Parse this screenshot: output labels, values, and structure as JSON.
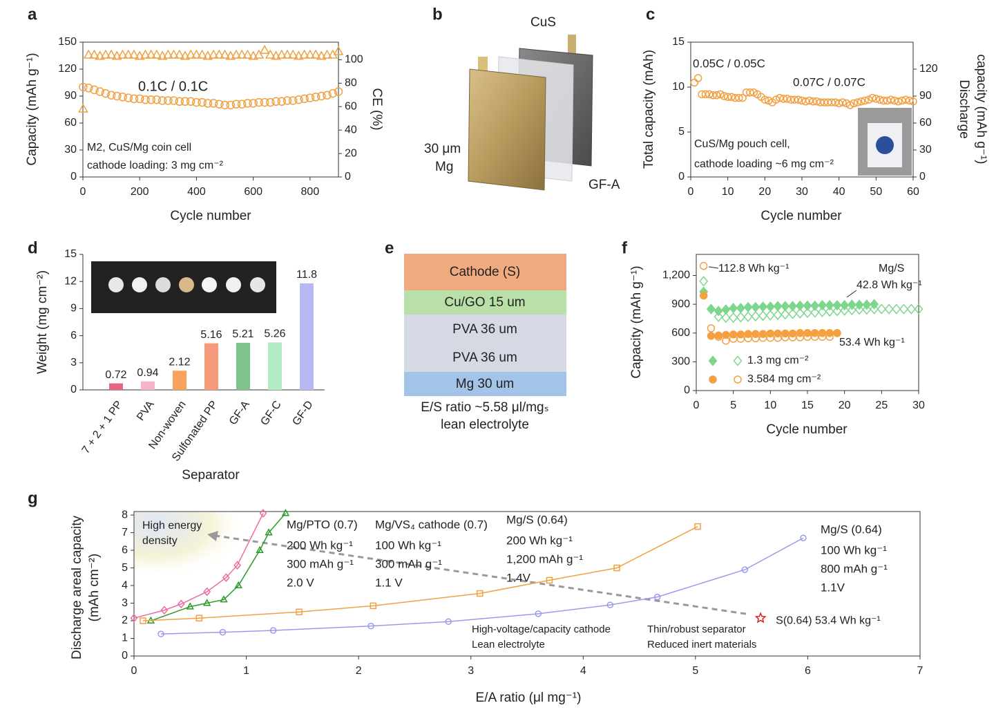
{
  "chart_data": [
    {
      "panel": "a",
      "type": "scatter",
      "frame": true,
      "xlabel": "Cycle number",
      "ylabel": [
        "Capacity (mAh g⁻¹)"
      ],
      "y2label": [
        "CE (%)"
      ],
      "xlim": [
        0,
        900
      ],
      "xticks": [
        0,
        200,
        400,
        600,
        800
      ],
      "ylim": [
        0,
        150
      ],
      "yticks": [
        0,
        30,
        60,
        90,
        120,
        150
      ],
      "y2lim": [
        0,
        115
      ],
      "y2ticks": [
        0,
        20,
        40,
        60,
        80,
        100
      ],
      "annotations": [
        "0.1C / 0.1C",
        "M2, CuS/Mg coin cell",
        "cathode loading: 3 mg cm⁻²"
      ],
      "x": [
        1,
        20,
        40,
        60,
        80,
        100,
        120,
        140,
        160,
        180,
        200,
        220,
        240,
        260,
        280,
        300,
        320,
        340,
        360,
        380,
        400,
        420,
        440,
        460,
        480,
        500,
        520,
        540,
        560,
        580,
        600,
        620,
        640,
        660,
        680,
        700,
        720,
        740,
        760,
        780,
        800,
        820,
        840,
        860,
        880,
        900
      ],
      "series": [
        {
          "color": "#f0a040",
          "marker": "circle",
          "filled": false,
          "values": [
            100,
            99,
            97,
            95,
            93,
            91,
            90,
            89,
            88,
            87,
            87,
            86,
            86,
            86,
            85,
            85,
            85,
            84,
            84,
            84,
            83,
            83,
            82,
            82,
            81,
            80,
            80,
            81,
            81,
            82,
            82,
            83,
            83,
            83,
            84,
            84,
            85,
            85,
            86,
            87,
            88,
            89,
            90,
            91,
            93,
            95
          ]
        },
        {
          "color": "#f0a040",
          "marker": "triangle",
          "filled": false,
          "axis": "y2",
          "values": [
            58,
            104,
            104,
            103,
            104,
            104,
            103,
            104,
            104,
            104,
            103,
            104,
            104,
            104,
            103,
            104,
            104,
            104,
            103,
            104,
            104,
            104,
            103,
            104,
            104,
            104,
            103,
            104,
            104,
            104,
            103,
            104,
            108,
            104,
            103,
            104,
            104,
            104,
            103,
            104,
            104,
            104,
            103,
            104,
            104,
            107
          ]
        }
      ]
    },
    {
      "panel": "c",
      "type": "scatter",
      "frame": true,
      "xlabel": "Cycle number",
      "ylabel": [
        "Total capacity (mAh)"
      ],
      "y2label": [
        "Discharge",
        "capacity (mAh g⁻¹)"
      ],
      "xlim": [
        0,
        60
      ],
      "xticks": [
        0,
        10,
        20,
        30,
        40,
        50,
        60
      ],
      "ylim": [
        0,
        15
      ],
      "yticks": [
        0,
        5,
        10,
        15
      ],
      "y2lim": [
        0,
        150
      ],
      "y2ticks": [
        0,
        30,
        60,
        90,
        120
      ],
      "annotations": [
        "0.05C / 0.05C",
        "0.07C / 0.07C",
        "CuS/Mg pouch cell,",
        "cathode loading ~6 mg cm⁻²"
      ],
      "x": [
        1,
        2,
        3,
        4,
        5,
        6,
        7,
        8,
        9,
        10,
        11,
        12,
        13,
        14,
        15,
        16,
        17,
        18,
        19,
        20,
        21,
        22,
        23,
        24,
        25,
        26,
        27,
        28,
        29,
        30,
        31,
        32,
        33,
        34,
        35,
        36,
        37,
        38,
        39,
        40,
        41,
        42,
        43,
        44,
        45,
        46,
        47,
        48,
        49,
        50,
        51,
        52,
        53,
        54,
        55,
        56,
        57,
        58,
        59,
        60
      ],
      "series": [
        {
          "color": "#f0a040",
          "marker": "circle",
          "filled": false,
          "values": [
            10.5,
            11.0,
            9.2,
            9.2,
            9.2,
            9.1,
            9.1,
            9.2,
            9.0,
            8.9,
            8.9,
            8.8,
            8.8,
            8.8,
            9.4,
            9.4,
            9.4,
            9.2,
            8.9,
            8.6,
            8.5,
            8.3,
            8.6,
            8.8,
            8.7,
            8.7,
            8.6,
            8.6,
            8.6,
            8.5,
            8.4,
            8.5,
            8.4,
            8.4,
            8.3,
            8.3,
            8.3,
            8.3,
            8.3,
            8.2,
            8.3,
            8.2,
            8.0,
            8.2,
            8.3,
            8.4,
            8.5,
            8.6,
            8.8,
            8.7,
            8.6,
            8.5,
            8.5,
            8.6,
            8.5,
            8.4,
            8.5,
            8.6,
            8.5,
            8.4
          ]
        }
      ]
    },
    {
      "panel": "d",
      "type": "bar",
      "frame": false,
      "xlabel": "Separator",
      "ylabel": [
        "Weight (mg cm⁻²)"
      ],
      "ylim": [
        0,
        15
      ],
      "yticks": [
        0,
        3,
        6,
        9,
        12,
        15
      ],
      "categories": [
        "7 + 2 + 1 PP",
        "PVA",
        "Non-woven",
        "Sulfonated PP",
        "GF-A",
        "GF-C",
        "GF-D"
      ],
      "values": [
        0.72,
        0.94,
        2.12,
        5.16,
        5.21,
        5.26,
        11.8
      ],
      "colors": [
        "#e8657f",
        "#f4b6c7",
        "#f7a35c",
        "#f59a7a",
        "#7cc48a",
        "#b3ecc2",
        "#b8b8f5"
      ]
    },
    {
      "panel": "f",
      "type": "scatter",
      "frame": true,
      "xlabel": "Cycle number",
      "ylabel": [
        "Capacity (mAh g⁻¹)"
      ],
      "xlim": [
        0,
        30
      ],
      "xticks": [
        0,
        5,
        10,
        15,
        20,
        25,
        30
      ],
      "ylim": [
        0,
        1420
      ],
      "yticks": [
        0,
        300,
        600,
        900,
        {
          "value": 1200,
          "label": "1,200"
        }
      ],
      "annotations": [
        "112.8 Wh kg⁻¹",
        "Mg/S",
        "42.8 Wh kg⁻¹",
        "53.4 Wh kg⁻¹"
      ],
      "x": [
        1,
        2,
        3,
        4,
        5,
        6,
        7,
        8,
        9,
        10,
        11,
        12,
        13,
        14,
        15,
        16,
        17,
        18,
        19,
        20,
        21,
        22,
        23,
        24,
        25,
        26,
        27,
        28,
        29,
        30
      ],
      "series": [
        {
          "name": "1.3 mg cm⁻²",
          "color": "#7dd68c",
          "marker": "diamond",
          "filled": true,
          "values": [
            1030,
            850,
            830,
            845,
            860,
            860,
            870,
            870,
            875,
            875,
            880,
            880,
            880,
            885,
            885,
            885,
            890,
            890,
            890,
            890,
            895,
            895,
            895,
            900,
            null,
            null,
            null,
            null,
            null,
            null
          ]
        },
        {
          "color": "#7dd68c",
          "marker": "diamond",
          "filled": false,
          "values": [
            1140,
            850,
            770,
            760,
            760,
            765,
            770,
            775,
            780,
            785,
            790,
            795,
            800,
            805,
            810,
            815,
            820,
            825,
            830,
            835,
            840,
            845,
            845,
            850,
            850,
            850,
            850,
            850,
            850,
            850
          ]
        },
        {
          "name": "3.584 mg cm⁻²",
          "color": "#f5a040",
          "marker": "circle",
          "filled": true,
          "values": [
            990,
            570,
            575,
            580,
            585,
            585,
            590,
            590,
            590,
            595,
            595,
            595,
            595,
            600,
            600,
            600,
            600,
            600,
            600,
            null,
            null,
            null,
            null,
            null,
            null,
            null,
            null,
            null,
            null,
            null
          ]
        },
        {
          "color": "#f5a040",
          "marker": "circle",
          "filled": false,
          "values": [
            1300,
            650,
            560,
            520,
            540,
            540,
            545,
            545,
            550,
            550,
            550,
            555,
            555,
            555,
            560,
            560,
            560,
            560,
            600,
            null,
            null,
            null,
            null,
            null,
            null,
            null,
            null,
            null,
            null,
            null
          ]
        }
      ]
    },
    {
      "panel": "g",
      "type": "scatter",
      "frame": true,
      "xlabel": "E/A ratio (μl mg⁻¹)",
      "ylabel": [
        "Discharge areal capacity",
        "(mAh cm⁻²)"
      ],
      "xlim": [
        0,
        7
      ],
      "xticks": [
        0,
        1,
        2,
        3,
        4,
        5,
        6,
        7
      ],
      "ylim": [
        0,
        8.2
      ],
      "yticks": [
        0,
        1,
        2,
        3,
        4,
        5,
        6,
        7,
        8
      ],
      "annotations": [
        "High energy",
        "density",
        "High-voltage/capacity cathode",
        "Lean electrolyte",
        "Thin/robust separator",
        "Reduced inert materials"
      ],
      "point": {
        "label": "S(0.64)  53.4 Wh kg⁻¹",
        "x": 5.58,
        "y": 2.15,
        "color": "#e02020"
      },
      "series": [
        {
          "name": "Mg/PTO (0.7)",
          "notes": [
            "200 Wh kg⁻¹",
            "300 mAh g⁻¹",
            "2.0 V"
          ],
          "color": "#ec6aa0",
          "marker": "diamond",
          "filled": false,
          "line": true,
          "x": [
            0.0,
            0.27,
            0.42,
            0.65,
            0.82,
            0.92,
            1.15
          ],
          "values": [
            2.15,
            2.6,
            2.95,
            3.65,
            4.45,
            5.15,
            8.1
          ]
        },
        {
          "name": "Mg/VS₄ cathode (0.7)",
          "notes": [
            "100 Wh kg⁻¹",
            "300 mAh g⁻¹",
            "1.1 V"
          ],
          "color": "#2a9a2a",
          "marker": "triangle",
          "filled": false,
          "line": true,
          "x": [
            0.15,
            0.5,
            0.65,
            0.8,
            0.93,
            1.12,
            1.2,
            1.35
          ],
          "values": [
            2.0,
            2.8,
            3.0,
            3.2,
            4.0,
            6.0,
            7.0,
            8.1
          ]
        },
        {
          "name": "Mg/S (0.64)",
          "notes": [
            "200 Wh kg⁻¹",
            "1,200 mAh g⁻¹",
            "1.4V"
          ],
          "color": "#f0a040",
          "marker": "square",
          "filled": false,
          "line": true,
          "x": [
            0.08,
            0.58,
            1.47,
            2.13,
            3.08,
            3.7,
            4.3,
            5.02
          ],
          "values": [
            2.0,
            2.15,
            2.5,
            2.85,
            3.55,
            4.3,
            5.0,
            7.35
          ]
        },
        {
          "name": "Mg/S (0.64)",
          "notes": [
            "100 Wh kg⁻¹",
            "800 mAh g⁻¹",
            "1.1V"
          ],
          "color": "#9a9ae8",
          "marker": "circle",
          "filled": false,
          "line": true,
          "x": [
            0.24,
            0.79,
            1.24,
            2.11,
            2.8,
            3.6,
            4.24,
            4.66,
            5.44,
            5.96
          ],
          "values": [
            1.25,
            1.35,
            1.45,
            1.7,
            1.95,
            2.4,
            2.9,
            3.35,
            4.9,
            6.7
          ]
        }
      ]
    }
  ],
  "diagrams": {
    "b": {
      "panel": "b",
      "labels": [
        "CuS",
        "30 μm",
        "Mg",
        "GF-A"
      ]
    },
    "e": {
      "panel": "e",
      "layers": [
        "Cathode (S)",
        "Cu/GO 15 um",
        "PVA 36 um",
        "PVA 36 um",
        "Mg 30 um"
      ],
      "caption": [
        "E/S ratio ~5.58 μl/mgₛ",
        "lean electrolyte"
      ]
    }
  }
}
